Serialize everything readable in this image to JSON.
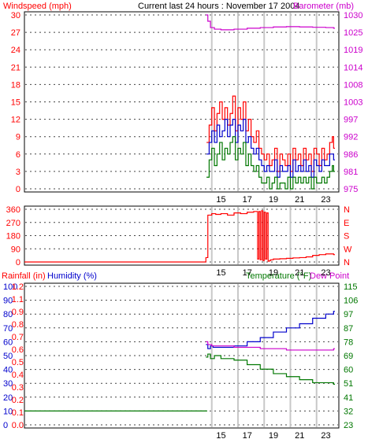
{
  "header": {
    "title": "Current last 24 hours : November 17 2004",
    "windspeed_label": "Windspeed (mph)",
    "barometer_label": "Barometer (mb)",
    "rainfall_label": "Rainfall (in)",
    "humidity_label": "Humidity (%)",
    "temperature_label": "Temperature (°F)",
    "dewpoint_label": "Dew Point"
  },
  "colors": {
    "red": "#ff0000",
    "blue": "#0000cc",
    "green": "#007700",
    "magenta": "#cc00cc",
    "grid": "#c8c8c8",
    "axis": "#000000"
  },
  "chart_data": [
    {
      "type": "line",
      "name": "wind-barometer",
      "x_ticks": [
        "15",
        "17",
        "19",
        "21",
        "23"
      ],
      "y_left": {
        "label": "Windspeed (mph)",
        "ticks": [
          "0",
          "3",
          "6",
          "9",
          "12",
          "15",
          "18",
          "21",
          "24",
          "27",
          "30"
        ],
        "ylim": [
          0,
          30
        ]
      },
      "y_right": {
        "label": "Barometer (mb)",
        "ticks": [
          "975",
          "981",
          "986",
          "992",
          "997",
          "1003",
          "1008",
          "1014",
          "1019",
          "1025",
          "1030"
        ],
        "ylim": [
          975,
          1030
        ]
      },
      "series": [
        {
          "color": "red",
          "x": [
            13.9,
            14.1,
            14.3,
            14.5,
            14.7,
            14.9,
            15.1,
            15.3,
            15.5,
            15.7,
            15.9,
            16.1,
            16.3,
            16.5,
            16.7,
            16.9,
            17.1,
            17.3,
            17.5,
            17.7,
            17.9,
            18.1,
            18.3,
            18.5,
            18.7,
            18.9,
            19.1,
            19.3,
            19.5,
            19.7,
            19.9,
            20.1,
            20.3,
            20.5,
            20.7,
            20.9,
            21.1,
            21.3,
            21.5,
            21.7,
            21.9,
            22.1,
            22.3,
            22.5,
            22.7,
            22.9,
            23.1,
            23.3,
            23.5,
            23.6
          ],
          "values": [
            8,
            11,
            14,
            10,
            13,
            15,
            12,
            14,
            11,
            13,
            16,
            10,
            14,
            12,
            15,
            10,
            12,
            9,
            8,
            10,
            7,
            6,
            5,
            6,
            4,
            5,
            7,
            3,
            6,
            5,
            4,
            6,
            3,
            7,
            5,
            6,
            4,
            7,
            5,
            6,
            3,
            7,
            6,
            4,
            7,
            5,
            6,
            8,
            9,
            7
          ]
        },
        {
          "color": "blue",
          "x": [
            13.9,
            14.1,
            14.3,
            14.5,
            14.7,
            14.9,
            15.1,
            15.3,
            15.5,
            15.7,
            15.9,
            16.1,
            16.3,
            16.5,
            16.7,
            16.9,
            17.1,
            17.3,
            17.5,
            17.7,
            17.9,
            18.1,
            18.3,
            18.5,
            18.7,
            18.9,
            19.1,
            19.3,
            19.5,
            19.7,
            19.9,
            20.1,
            20.3,
            20.5,
            20.7,
            20.9,
            21.1,
            21.3,
            21.5,
            21.7,
            21.9,
            22.1,
            22.3,
            22.5,
            22.7,
            22.9,
            23.1,
            23.3,
            23.5,
            23.6
          ],
          "values": [
            6,
            8,
            10,
            8,
            11,
            9,
            10,
            12,
            9,
            11,
            12,
            8,
            11,
            10,
            12,
            8,
            9,
            7,
            6,
            7,
            5,
            4,
            3,
            4,
            3,
            3,
            5,
            2,
            4,
            3,
            3,
            4,
            2,
            5,
            3,
            4,
            3,
            5,
            3,
            4,
            2,
            5,
            4,
            3,
            5,
            4,
            4,
            6,
            6,
            5
          ]
        },
        {
          "color": "green",
          "x": [
            13.9,
            14.1,
            14.3,
            14.5,
            14.7,
            14.9,
            15.1,
            15.3,
            15.5,
            15.7,
            15.9,
            16.1,
            16.3,
            16.5,
            16.7,
            16.9,
            17.1,
            17.3,
            17.5,
            17.7,
            17.9,
            18.1,
            18.3,
            18.5,
            18.7,
            18.9,
            19.1,
            19.3,
            19.5,
            19.7,
            19.9,
            20.1,
            20.3,
            20.5,
            20.7,
            20.9,
            21.1,
            21.3,
            21.5,
            21.7,
            21.9,
            22.1,
            22.3,
            22.5,
            22.7,
            22.9,
            23.1,
            23.3,
            23.5,
            23.6
          ],
          "values": [
            2,
            5,
            7,
            4,
            6,
            8,
            5,
            7,
            6,
            8,
            9,
            5,
            7,
            6,
            8,
            4,
            6,
            4,
            3,
            4,
            2,
            1,
            1,
            2,
            0,
            1,
            2,
            0,
            1,
            1,
            0,
            2,
            0,
            2,
            1,
            2,
            1,
            2,
            1,
            2,
            0,
            2,
            1,
            1,
            2,
            1,
            2,
            3,
            4,
            3
          ]
        },
        {
          "color": "magenta",
          "x": [
            13.85,
            14.0,
            14.2,
            14.5,
            15,
            16,
            17,
            18,
            19,
            20,
            21,
            22,
            23,
            23.6
          ],
          "values": [
            1030,
            1028,
            1026,
            1025.5,
            1025.3,
            1025.5,
            1025.8,
            1026,
            1026.2,
            1026.3,
            1026.2,
            1026.1,
            1026,
            1025.8
          ]
        }
      ]
    },
    {
      "type": "line",
      "name": "wind-direction",
      "x_ticks": [
        "15",
        "17",
        "19",
        "21",
        "23"
      ],
      "y_left": {
        "ticks": [
          "0",
          "90",
          "180",
          "270",
          "360"
        ],
        "ylim": [
          0,
          360
        ]
      },
      "y_right": {
        "ticks": [
          "N",
          "W",
          "S",
          "E",
          "N"
        ]
      },
      "series": [
        {
          "color": "red",
          "x": [
            0,
            13.8,
            13.85,
            14.0,
            14.3,
            14.6,
            15,
            15.5,
            16,
            16.5,
            17,
            17.5,
            17.8,
            17.9,
            18.0,
            18.1,
            18.2,
            18.3,
            18.4,
            18.5,
            18.6,
            18.7,
            18.8,
            19,
            19.5,
            20,
            20.5,
            21,
            21.5,
            22,
            22.5,
            23,
            23.6
          ],
          "values": [
            0,
            0,
            30,
            320,
            330,
            325,
            330,
            320,
            335,
            330,
            340,
            345,
            20,
            345,
            15,
            350,
            10,
            340,
            20,
            335,
            5,
            10,
            15,
            20,
            22,
            25,
            28,
            30,
            35,
            45,
            50,
            55,
            50
          ]
        }
      ]
    },
    {
      "type": "line",
      "name": "rain-humidity-temperature",
      "x_ticks": [
        "15",
        "17",
        "19",
        "21",
        "23"
      ],
      "y_rain": {
        "label": "Rainfall (in)",
        "ticks": [
          "0.0",
          "0.1",
          "0.2",
          "0.3",
          "0.4",
          "0.5",
          "0.6",
          "0.7",
          "0.8",
          "0.9",
          "1.1",
          "1.2"
        ]
      },
      "y_humidity": {
        "label": "Humidity (%)",
        "ticks": [
          "0",
          "10",
          "20",
          "30",
          "40",
          "50",
          "60",
          "70",
          "80",
          "90",
          "100"
        ],
        "ylim": [
          0,
          100
        ]
      },
      "y_right": {
        "label": "Temperature (°F)",
        "ticks": [
          "23",
          "32",
          "41",
          "51",
          "60",
          "69",
          "78",
          "87",
          "97",
          "106",
          "115"
        ],
        "ylim": [
          23,
          115
        ]
      },
      "series": [
        {
          "color": "green",
          "x": [
            0,
            13.85
          ],
          "values": [
            10,
            10
          ]
        },
        {
          "color": "blue",
          "x": [
            13.85,
            14.0,
            14.2,
            14.4,
            15,
            16,
            17,
            18,
            19,
            20,
            21,
            22,
            23,
            23.6
          ],
          "values": [
            58,
            55,
            57,
            56,
            56,
            57,
            60,
            63,
            67,
            70,
            73,
            77,
            80,
            82
          ]
        },
        {
          "color": "green",
          "x": [
            13.85,
            14.0,
            14.2,
            14.5,
            15,
            16,
            17,
            18,
            19,
            20,
            21,
            22,
            23,
            23.6
          ],
          "values": [
            68,
            70,
            67,
            69,
            67,
            66,
            63,
            60,
            57,
            55,
            53,
            51,
            51,
            50
          ]
        },
        {
          "color": "magenta",
          "x": [
            13.85,
            14.0,
            14.3,
            15,
            16,
            17,
            18,
            19,
            20,
            21,
            22,
            23,
            23.6
          ],
          "values": [
            60,
            58,
            57,
            57,
            56,
            56,
            55,
            55,
            54,
            54,
            54,
            54,
            55
          ]
        }
      ]
    }
  ]
}
